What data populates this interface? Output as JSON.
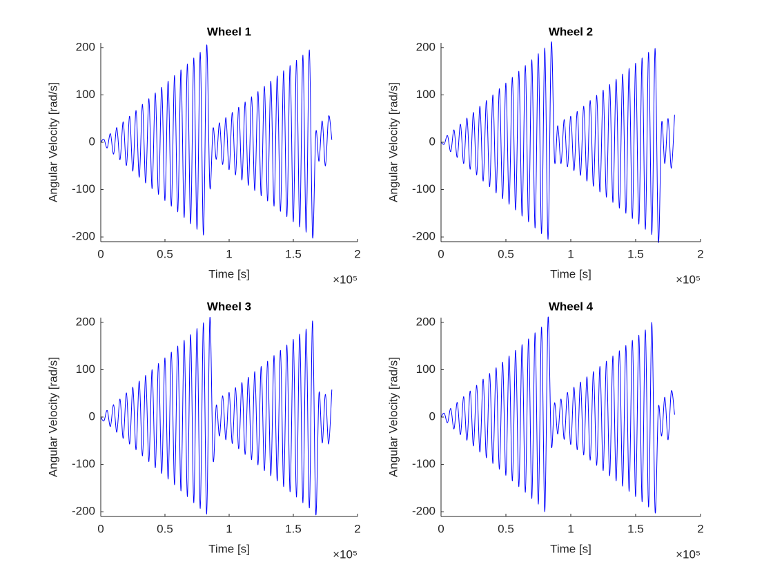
{
  "chart_data": [
    {
      "type": "line",
      "title": "Wheel 1",
      "xlabel": "Time [s]",
      "ylabel": "Angular Velocity [rad/s]",
      "x_multiplier": "×10⁵",
      "xlim": [
        0,
        2
      ],
      "ylim": [
        -210,
        210
      ],
      "xticks": [
        0,
        0.5,
        1,
        1.5,
        2
      ],
      "yticks": [
        -200,
        -100,
        0,
        100,
        200
      ],
      "x": [
        0,
        0.025,
        0.05,
        0.075,
        0.1,
        0.125,
        0.15,
        0.175,
        0.2,
        0.225,
        0.25,
        0.275,
        0.3,
        0.325,
        0.35,
        0.375,
        0.4,
        0.425,
        0.45,
        0.475,
        0.5,
        0.525,
        0.55,
        0.575,
        0.6,
        0.625,
        0.65,
        0.675,
        0.7,
        0.725,
        0.75,
        0.775,
        0.8,
        0.825,
        0.85,
        0.875,
        0.9,
        0.925,
        0.95,
        0.975,
        1,
        1.025,
        1.05,
        1.075,
        1.1,
        1.125,
        1.15,
        1.175,
        1.2,
        1.225,
        1.25,
        1.275,
        1.3,
        1.325,
        1.35,
        1.375,
        1.4,
        1.425,
        1.45,
        1.475,
        1.5,
        1.525,
        1.55,
        1.575,
        1.6,
        1.625,
        1.65,
        1.675,
        1.7,
        1.725,
        1.75,
        1.775,
        1.8
      ],
      "series": [
        {
          "color": "#0000ff",
          "values": [
            0,
            6,
            -12,
            18,
            -25,
            31,
            -37,
            43,
            -49,
            55,
            -61,
            67,
            -74,
            80,
            -86,
            92,
            -98,
            104,
            -110,
            116,
            -123,
            129,
            -135,
            141,
            -147,
            153,
            -159,
            165,
            -172,
            178,
            -184,
            190,
            -196,
            205,
            -95,
            30,
            -36,
            41,
            -47,
            52,
            -58,
            63,
            -69,
            74,
            -80,
            85,
            -91,
            96,
            -102,
            107,
            -113,
            118,
            -124,
            129,
            -135,
            140,
            -146,
            151,
            -157,
            162,
            -168,
            173,
            -179,
            184,
            -190,
            195,
            -200,
            20,
            -40,
            45,
            -50,
            55,
            5
          ]
        }
      ]
    },
    {
      "type": "line",
      "title": "Wheel 2",
      "xlabel": "Time [s]",
      "ylabel": "Angular Velocity [rad/s]",
      "x_multiplier": "×10⁵",
      "xlim": [
        0,
        2
      ],
      "ylim": [
        -210,
        210
      ],
      "xticks": [
        0,
        0.5,
        1,
        1.5,
        2
      ],
      "yticks": [
        -200,
        -100,
        0,
        100,
        200
      ],
      "x": [
        0,
        0.025,
        0.05,
        0.075,
        0.1,
        0.125,
        0.15,
        0.175,
        0.2,
        0.225,
        0.25,
        0.275,
        0.3,
        0.325,
        0.35,
        0.375,
        0.4,
        0.425,
        0.45,
        0.475,
        0.5,
        0.525,
        0.55,
        0.575,
        0.6,
        0.625,
        0.65,
        0.675,
        0.7,
        0.725,
        0.75,
        0.775,
        0.8,
        0.825,
        0.85,
        0.875,
        0.9,
        0.925,
        0.95,
        0.975,
        1,
        1.025,
        1.05,
        1.075,
        1.1,
        1.125,
        1.15,
        1.175,
        1.2,
        1.225,
        1.25,
        1.275,
        1.3,
        1.325,
        1.35,
        1.375,
        1.4,
        1.425,
        1.45,
        1.475,
        1.5,
        1.525,
        1.55,
        1.575,
        1.6,
        1.625,
        1.65,
        1.675,
        1.7,
        1.725,
        1.75,
        1.775,
        1.8
      ],
      "series": [
        {
          "color": "#0000ff",
          "values": [
            0,
            -4,
            14,
            -20,
            26,
            -32,
            38,
            -45,
            51,
            -57,
            63,
            -69,
            76,
            -82,
            88,
            -94,
            100,
            -107,
            113,
            -119,
            125,
            -131,
            137,
            -143,
            150,
            -156,
            162,
            -168,
            174,
            -181,
            187,
            -193,
            199,
            -205,
            210,
            -40,
            35,
            -45,
            48,
            -52,
            55,
            -60,
            65,
            -70,
            76,
            -82,
            88,
            -93,
            99,
            -105,
            110,
            -116,
            122,
            -127,
            133,
            -139,
            144,
            -150,
            156,
            -161,
            167,
            -173,
            178,
            -184,
            190,
            -195,
            198,
            -210,
            40,
            -45,
            50,
            -55,
            58
          ]
        }
      ]
    },
    {
      "type": "line",
      "title": "Wheel 3",
      "xlabel": "Time [s]",
      "ylabel": "Angular Velocity [rad/s]",
      "x_multiplier": "×10⁵",
      "xlim": [
        0,
        2
      ],
      "ylim": [
        -210,
        210
      ],
      "xticks": [
        0,
        0.5,
        1,
        1.5,
        2
      ],
      "yticks": [
        -200,
        -100,
        0,
        100,
        200
      ],
      "x": [
        0,
        0.025,
        0.05,
        0.075,
        0.1,
        0.125,
        0.15,
        0.175,
        0.2,
        0.225,
        0.25,
        0.275,
        0.3,
        0.325,
        0.35,
        0.375,
        0.4,
        0.425,
        0.45,
        0.475,
        0.5,
        0.525,
        0.55,
        0.575,
        0.6,
        0.625,
        0.65,
        0.675,
        0.7,
        0.725,
        0.75,
        0.775,
        0.8,
        0.825,
        0.85,
        0.875,
        0.9,
        0.925,
        0.95,
        0.975,
        1,
        1.025,
        1.05,
        1.075,
        1.1,
        1.125,
        1.15,
        1.175,
        1.2,
        1.225,
        1.25,
        1.275,
        1.3,
        1.325,
        1.35,
        1.375,
        1.4,
        1.425,
        1.45,
        1.475,
        1.5,
        1.525,
        1.55,
        1.575,
        1.6,
        1.625,
        1.65,
        1.675,
        1.7,
        1.725,
        1.75,
        1.775,
        1.8
      ],
      "series": [
        {
          "color": "#0000ff",
          "values": [
            0,
            -8,
            14,
            -20,
            26,
            -32,
            38,
            -45,
            51,
            -57,
            63,
            -69,
            76,
            -82,
            88,
            -94,
            100,
            -107,
            113,
            -119,
            125,
            -131,
            137,
            -143,
            150,
            -156,
            162,
            -168,
            174,
            -181,
            187,
            -193,
            199,
            -205,
            210,
            -90,
            25,
            -40,
            45,
            -48,
            52,
            -56,
            62,
            -67,
            73,
            -79,
            84,
            -90,
            96,
            -101,
            107,
            -113,
            118,
            -124,
            130,
            -135,
            141,
            -147,
            152,
            -158,
            164,
            -169,
            175,
            -181,
            186,
            -192,
            203,
            -205,
            50,
            -55,
            48,
            -57,
            58
          ]
        }
      ]
    },
    {
      "type": "line",
      "title": "Wheel 4",
      "xlabel": "Time [s]",
      "ylabel": "Angular Velocity [rad/s]",
      "x_multiplier": "×10⁵",
      "xlim": [
        0,
        2
      ],
      "ylim": [
        -210,
        210
      ],
      "xticks": [
        0,
        0.5,
        1,
        1.5,
        2
      ],
      "yticks": [
        -200,
        -100,
        0,
        100,
        200
      ],
      "x": [
        0,
        0.025,
        0.05,
        0.075,
        0.1,
        0.125,
        0.15,
        0.175,
        0.2,
        0.225,
        0.25,
        0.275,
        0.3,
        0.325,
        0.35,
        0.375,
        0.4,
        0.425,
        0.45,
        0.475,
        0.5,
        0.525,
        0.55,
        0.575,
        0.6,
        0.625,
        0.65,
        0.675,
        0.7,
        0.725,
        0.75,
        0.775,
        0.8,
        0.825,
        0.85,
        0.875,
        0.9,
        0.925,
        0.95,
        0.975,
        1,
        1.025,
        1.05,
        1.075,
        1.1,
        1.125,
        1.15,
        1.175,
        1.2,
        1.225,
        1.25,
        1.275,
        1.3,
        1.325,
        1.35,
        1.375,
        1.4,
        1.425,
        1.45,
        1.475,
        1.5,
        1.525,
        1.55,
        1.575,
        1.6,
        1.625,
        1.65,
        1.675,
        1.7,
        1.725,
        1.75,
        1.775,
        1.8
      ],
      "series": [
        {
          "color": "#0000ff",
          "values": [
            0,
            8,
            -12,
            18,
            -25,
            31,
            -37,
            43,
            -49,
            55,
            -61,
            67,
            -74,
            80,
            -86,
            92,
            -98,
            104,
            -110,
            116,
            -123,
            129,
            -135,
            141,
            -147,
            153,
            -159,
            165,
            -172,
            178,
            -184,
            190,
            -200,
            210,
            -60,
            30,
            -36,
            38,
            -47,
            52,
            -58,
            63,
            -69,
            74,
            -80,
            85,
            -91,
            96,
            -102,
            107,
            -113,
            118,
            -124,
            129,
            -135,
            140,
            -146,
            151,
            -157,
            162,
            -168,
            173,
            -179,
            184,
            -190,
            200,
            -200,
            20,
            -40,
            42,
            -48,
            55,
            5
          ]
        }
      ]
    }
  ]
}
